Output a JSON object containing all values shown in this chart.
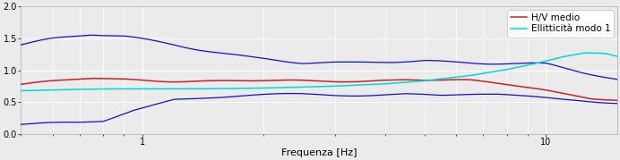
{
  "title": "",
  "xlabel": "Frequenza [Hz]",
  "ylabel": "",
  "xmin": 0.5,
  "xmax": 15.0,
  "ymin": 0.0,
  "ymax": 2.0,
  "yticks": [
    0,
    0.5,
    1.0,
    1.5,
    2.0
  ],
  "legend": [
    "H/V medio",
    "Ellitticità modo 1"
  ],
  "line_colors": {
    "hv_mean": "#cc2222",
    "ellip": "#00d8d8",
    "blue": "#1010cc"
  },
  "background_color": "#ebebeb",
  "grid_color": "#ffffff",
  "xlabel_fontsize": 8,
  "legend_fontsize": 7.5,
  "hv_keypoints_x": [
    0.5,
    0.6,
    0.75,
    0.9,
    1.2,
    1.8,
    2.5,
    3.5,
    4.5,
    5.5,
    6.5,
    8.0,
    9.5,
    11.0,
    13.0,
    15.0
  ],
  "hv_keypoints_y": [
    0.78,
    0.82,
    0.87,
    0.86,
    0.84,
    0.83,
    0.83,
    0.84,
    0.86,
    0.84,
    0.83,
    0.78,
    0.72,
    0.65,
    0.57,
    0.53
  ],
  "upper_keypoints_x": [
    0.5,
    0.6,
    0.75,
    0.9,
    1.2,
    1.8,
    2.5,
    3.2,
    4.0,
    5.0,
    6.0,
    7.0,
    8.5,
    10.0,
    12.0,
    15.0
  ],
  "upper_keypoints_y": [
    1.4,
    1.48,
    1.55,
    1.53,
    1.42,
    1.22,
    1.1,
    1.1,
    1.14,
    1.17,
    1.14,
    1.12,
    1.1,
    1.08,
    0.97,
    0.86
  ],
  "lower_keypoints_x": [
    0.5,
    0.6,
    0.7,
    0.8,
    0.95,
    1.2,
    1.8,
    2.5,
    3.5,
    4.5,
    5.5,
    6.5,
    7.5,
    8.5,
    10.0,
    12.0,
    14.0,
    15.0
  ],
  "lower_keypoints_y": [
    0.15,
    0.16,
    0.17,
    0.2,
    0.38,
    0.55,
    0.6,
    0.62,
    0.62,
    0.63,
    0.6,
    0.62,
    0.62,
    0.6,
    0.58,
    0.55,
    0.5,
    0.48
  ],
  "ellip_keypoints_x": [
    0.5,
    0.8,
    1.2,
    2.0,
    3.0,
    4.0,
    5.0,
    6.5,
    8.0,
    9.5,
    11.0,
    12.5,
    14.0,
    15.0
  ],
  "ellip_keypoints_y": [
    0.68,
    0.7,
    0.71,
    0.73,
    0.75,
    0.78,
    0.83,
    0.92,
    1.02,
    1.12,
    1.22,
    1.28,
    1.27,
    1.22
  ]
}
